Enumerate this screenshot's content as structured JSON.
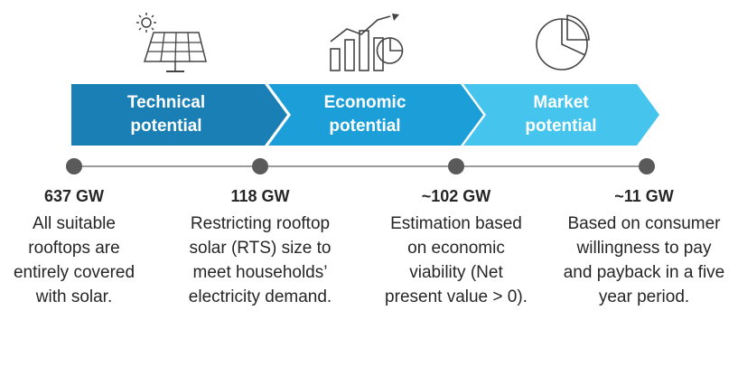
{
  "stages": [
    {
      "title_lines": [
        "Technical",
        "potential"
      ],
      "value": "637 GW",
      "desc_lines": [
        "All suitable",
        "rooftops are",
        "entirely covered",
        "with solar."
      ],
      "color": "#1a7fb4",
      "icon": "solar-panel-icon"
    },
    {
      "title_lines": [
        "Economic",
        "potential"
      ],
      "value": "118 GW",
      "desc_lines": [
        "Restricting rooftop",
        "solar (RTS) size to",
        "meet households’",
        "electricity demand."
      ],
      "color": "#1c9fd8",
      "icon": "growth-chart-icon"
    },
    {
      "title_lines": [
        "Market",
        "potential"
      ],
      "value": "~102 GW",
      "desc_lines": [
        "Estimation based",
        "on economic",
        "viability (Net",
        "present value > 0)."
      ],
      "color": "#45c4ee",
      "icon": "pie-chart-icon"
    },
    {
      "value": "~11 GW",
      "desc_lines": [
        "Based on consumer",
        "willingness to pay",
        "and payback in a five",
        "year period."
      ]
    }
  ]
}
